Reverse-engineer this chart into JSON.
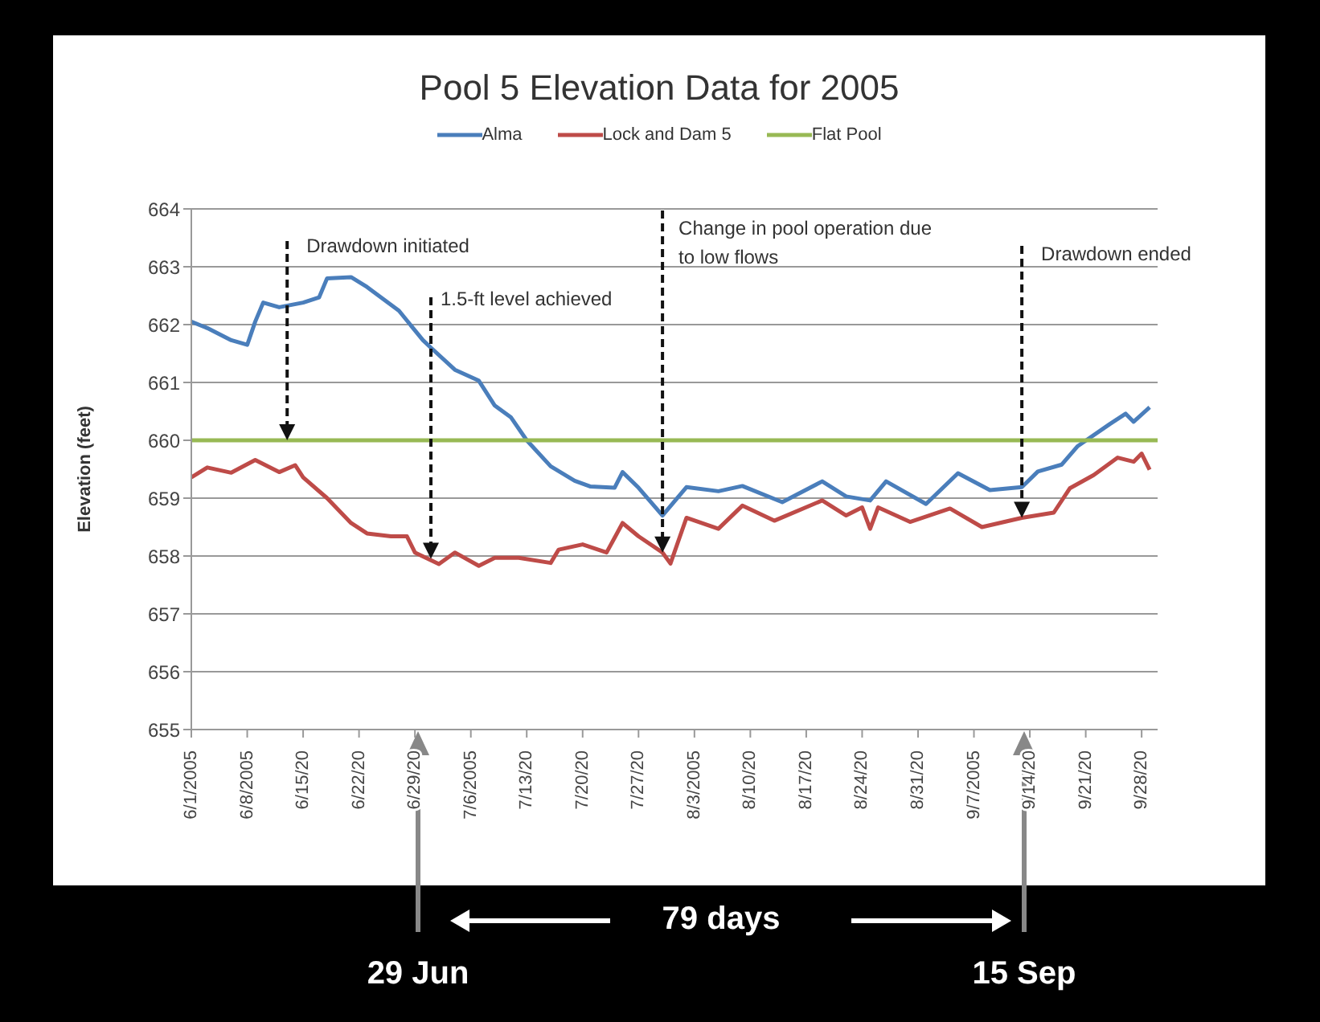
{
  "chart_data": {
    "type": "line",
    "title": "Pool 5 Elevation Data for 2005",
    "ylabel": "Elevation (feet)",
    "xlim": [
      "2005-06-01",
      "2005-09-30"
    ],
    "ylim": [
      655,
      664
    ],
    "yticks": [
      655,
      656,
      657,
      658,
      659,
      660,
      661,
      662,
      663,
      664
    ],
    "xticks": [
      {
        "value": "2005-06-01",
        "label": "6/1/2005"
      },
      {
        "value": "2005-06-08",
        "label": "6/8/2005"
      },
      {
        "value": "2005-06-15",
        "label": "6/15/20"
      },
      {
        "value": "2005-06-22",
        "label": "6/22/20"
      },
      {
        "value": "2005-06-29",
        "label": "6/29/20"
      },
      {
        "value": "2005-07-06",
        "label": "7/6/2005"
      },
      {
        "value": "2005-07-13",
        "label": "7/13/20"
      },
      {
        "value": "2005-07-20",
        "label": "7/20/20"
      },
      {
        "value": "2005-07-27",
        "label": "7/27/20"
      },
      {
        "value": "2005-08-03",
        "label": "8/3/2005"
      },
      {
        "value": "2005-08-10",
        "label": "8/10/20"
      },
      {
        "value": "2005-08-17",
        "label": "8/17/20"
      },
      {
        "value": "2005-08-24",
        "label": "8/24/20"
      },
      {
        "value": "2005-08-31",
        "label": "8/31/20"
      },
      {
        "value": "2005-09-07",
        "label": "9/7/2005"
      },
      {
        "value": "2005-09-14",
        "label": "9/14/20"
      },
      {
        "value": "2005-09-21",
        "label": "9/21/20"
      },
      {
        "value": "2005-09-28",
        "label": "9/28/20"
      }
    ],
    "grid": "y",
    "legend": "top",
    "marker": "none",
    "line_style": "solid",
    "series": [
      {
        "name": "Alma",
        "color": "#4a7ebb",
        "x": [
          "2005-06-01",
          "2005-06-03",
          "2005-06-06",
          "2005-06-08",
          "2005-06-09",
          "2005-06-10",
          "2005-06-12",
          "2005-06-15",
          "2005-06-17",
          "2005-06-18",
          "2005-06-21",
          "2005-06-23",
          "2005-06-27",
          "2005-06-30",
          "2005-07-01",
          "2005-07-04",
          "2005-07-07",
          "2005-07-09",
          "2005-07-11",
          "2005-07-13",
          "2005-07-16",
          "2005-07-19",
          "2005-07-21",
          "2005-07-24",
          "2005-07-25",
          "2005-07-27",
          "2005-07-30",
          "2005-08-02",
          "2005-08-06",
          "2005-08-09",
          "2005-08-14",
          "2005-08-19",
          "2005-08-22",
          "2005-08-25",
          "2005-08-27",
          "2005-09-01",
          "2005-09-05",
          "2005-09-09",
          "2005-09-13",
          "2005-09-15",
          "2005-09-18",
          "2005-09-20",
          "2005-09-24",
          "2005-09-26",
          "2005-09-27",
          "2005-09-29"
        ],
        "values": [
          662.05,
          661.94,
          661.73,
          661.65,
          662.05,
          662.38,
          662.3,
          662.38,
          662.47,
          662.8,
          662.82,
          662.65,
          662.24,
          661.73,
          661.6,
          661.22,
          661.03,
          660.6,
          660.4,
          660.0,
          659.55,
          659.3,
          659.2,
          659.18,
          659.45,
          659.18,
          658.7,
          659.19,
          659.12,
          659.21,
          658.93,
          659.29,
          659.03,
          658.96,
          659.29,
          658.9,
          659.43,
          659.14,
          659.19,
          659.46,
          659.58,
          659.9,
          660.28,
          660.46,
          660.32,
          660.57
        ]
      },
      {
        "name": "Lock and Dam 5",
        "color": "#be4b48",
        "x": [
          "2005-06-01",
          "2005-06-03",
          "2005-06-06",
          "2005-06-09",
          "2005-06-12",
          "2005-06-14",
          "2005-06-15",
          "2005-06-18",
          "2005-06-21",
          "2005-06-23",
          "2005-06-26",
          "2005-06-28",
          "2005-06-29",
          "2005-07-02",
          "2005-07-04",
          "2005-07-07",
          "2005-07-09",
          "2005-07-12",
          "2005-07-16",
          "2005-07-17",
          "2005-07-20",
          "2005-07-23",
          "2005-07-25",
          "2005-07-27",
          "2005-07-30",
          "2005-07-31",
          "2005-08-02",
          "2005-08-06",
          "2005-08-09",
          "2005-08-13",
          "2005-08-19",
          "2005-08-22",
          "2005-08-24",
          "2005-08-25",
          "2005-08-26",
          "2005-08-30",
          "2005-09-04",
          "2005-09-08",
          "2005-09-13",
          "2005-09-17",
          "2005-09-19",
          "2005-09-22",
          "2005-09-25",
          "2005-09-27",
          "2005-09-28",
          "2005-09-29"
        ],
        "values": [
          659.36,
          659.53,
          659.44,
          659.66,
          659.45,
          659.57,
          659.36,
          659.0,
          658.57,
          658.39,
          658.34,
          658.34,
          658.06,
          657.86,
          658.06,
          657.83,
          657.97,
          657.97,
          657.88,
          658.11,
          658.2,
          658.06,
          658.57,
          658.34,
          658.06,
          657.87,
          658.66,
          658.47,
          658.87,
          658.61,
          658.96,
          658.7,
          658.84,
          658.47,
          658.84,
          658.59,
          658.82,
          658.5,
          658.66,
          658.75,
          659.17,
          659.4,
          659.7,
          659.63,
          659.77,
          659.49
        ]
      },
      {
        "name": "Flat Pool",
        "color": "#98b954",
        "x": [
          "2005-06-01",
          "2005-09-30"
        ],
        "values": [
          660,
          660
        ]
      }
    ],
    "annotations": [
      {
        "text": "Drawdown initiated",
        "x": "2005-06-13",
        "y": 660
      },
      {
        "text": "1.5-ft level achieved",
        "x": "2005-07-01",
        "y": 657.95
      },
      {
        "text": "Change in pool operation due to low flows",
        "x": "2005-07-30",
        "y": 658.06
      },
      {
        "text": "Drawdown ended",
        "x": "2005-09-13",
        "y": 658.66
      },
      "29 Jun",
      "15 Sep",
      "79 days"
    ]
  }
}
